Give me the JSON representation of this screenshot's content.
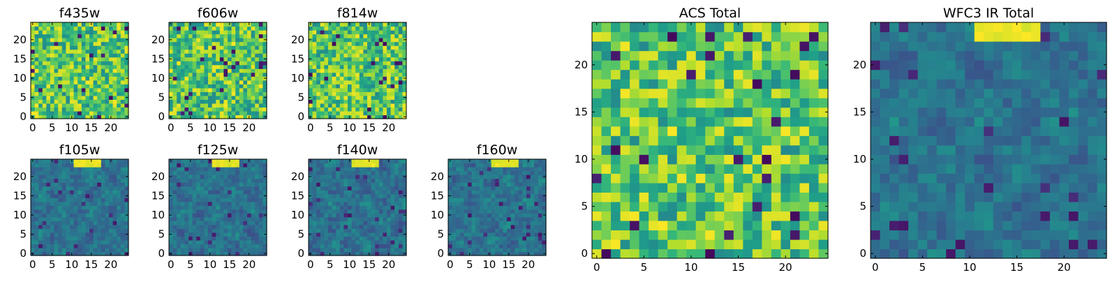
{
  "chart_data": [
    {
      "type": "heatmap",
      "title": "f435w",
      "pattern": "noise",
      "seed": 11,
      "colormap": "viridis",
      "xticks": [
        "0",
        "5",
        "10",
        "15",
        "20"
      ],
      "yticks": [
        "0",
        "5",
        "10",
        "15",
        "20"
      ],
      "xlim": [
        0,
        25
      ],
      "ylim": [
        0,
        25
      ]
    },
    {
      "type": "heatmap",
      "title": "f606w",
      "pattern": "noise",
      "seed": 23,
      "colormap": "viridis",
      "xticks": [
        "0",
        "5",
        "10",
        "15",
        "20"
      ],
      "yticks": [
        "0",
        "5",
        "10",
        "15",
        "20"
      ],
      "xlim": [
        0,
        25
      ],
      "ylim": [
        0,
        25
      ]
    },
    {
      "type": "heatmap",
      "title": "f814w",
      "pattern": "noise",
      "seed": 37,
      "colormap": "viridis",
      "xticks": [
        "0",
        "5",
        "10",
        "15",
        "20"
      ],
      "yticks": [
        "0",
        "5",
        "10",
        "15",
        "20"
      ],
      "xlim": [
        0,
        25
      ],
      "ylim": [
        0,
        25
      ]
    },
    {
      "type": "heatmap",
      "title": "f105w",
      "pattern": "ir",
      "seed": 41,
      "colormap": "viridis",
      "xticks": [
        "0",
        "5",
        "10",
        "15",
        "20"
      ],
      "yticks": [
        "0",
        "5",
        "10",
        "15",
        "20"
      ],
      "xlim": [
        0,
        25
      ],
      "ylim": [
        0,
        25
      ]
    },
    {
      "type": "heatmap",
      "title": "f125w",
      "pattern": "ir",
      "seed": 53,
      "colormap": "viridis",
      "xticks": [
        "0",
        "5",
        "10",
        "15",
        "20"
      ],
      "yticks": [
        "0",
        "5",
        "10",
        "15",
        "20"
      ],
      "xlim": [
        0,
        25
      ],
      "ylim": [
        0,
        25
      ]
    },
    {
      "type": "heatmap",
      "title": "f140w",
      "pattern": "ir",
      "seed": 67,
      "colormap": "viridis",
      "xticks": [
        "0",
        "5",
        "10",
        "15",
        "20"
      ],
      "yticks": [
        "0",
        "5",
        "10",
        "15",
        "20"
      ],
      "xlim": [
        0,
        25
      ],
      "ylim": [
        0,
        25
      ]
    },
    {
      "type": "heatmap",
      "title": "f160w",
      "pattern": "ir",
      "seed": 79,
      "colormap": "viridis",
      "xticks": [
        "0",
        "5",
        "10",
        "15",
        "20"
      ],
      "yticks": [
        "0",
        "5",
        "10",
        "15",
        "20"
      ],
      "xlim": [
        0,
        25
      ],
      "ylim": [
        0,
        25
      ]
    },
    {
      "type": "heatmap",
      "title": "ACS Total",
      "pattern": "noise",
      "seed": 97,
      "colormap": "viridis",
      "xticks": [
        "0",
        "5",
        "10",
        "15",
        "20"
      ],
      "yticks": [
        "0",
        "5",
        "10",
        "15",
        "20"
      ],
      "xlim": [
        0,
        25
      ],
      "ylim": [
        0,
        25
      ]
    },
    {
      "type": "heatmap",
      "title": "WFC3 IR Total",
      "pattern": "ir",
      "seed": 113,
      "colormap": "viridis",
      "xticks": [
        "0",
        "5",
        "10",
        "15",
        "20"
      ],
      "yticks": [
        "0",
        "5",
        "10",
        "15",
        "20"
      ],
      "xlim": [
        0,
        25
      ],
      "ylim": [
        0,
        25
      ]
    }
  ]
}
